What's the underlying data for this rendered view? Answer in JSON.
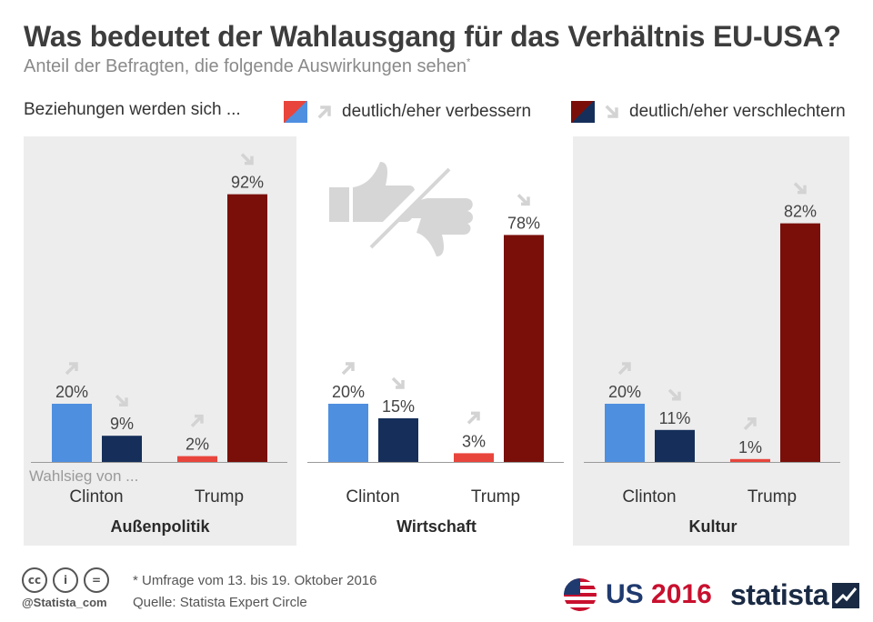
{
  "header": {
    "title": "Was bedeutet der Wahlausgang für das Verhältnis EU-USA?",
    "subtitle": "Anteil der Befragten, die folgende Auswirkungen sehen",
    "subtitle_mark": "*"
  },
  "legend": {
    "prefix": "Beziehungen werden sich ...",
    "items": [
      {
        "label": "deutlich/eher verbessern",
        "icon": "arrow-up-right-icon",
        "colors": [
          "#e8453c",
          "#4f8fe0"
        ]
      },
      {
        "label": "deutlich/eher verschlechtern",
        "icon": "arrow-down-right-icon",
        "colors": [
          "#7a0f0a",
          "#152f5a"
        ]
      }
    ]
  },
  "colors": {
    "clinton_better": "#4f8fe0",
    "clinton_worse": "#152f5a",
    "trump_better": "#e8453c",
    "trump_worse": "#7a0f0a",
    "panel_bg": "#ededed",
    "arrow": "#d3d3d3"
  },
  "chart_data": [
    {
      "type": "bar",
      "title": "Außenpolitik",
      "group_prefix": "Wahlsieg von ...",
      "categories": [
        "Clinton",
        "Trump"
      ],
      "series": [
        {
          "name": "deutlich/eher verbessern",
          "values": [
            20,
            2
          ]
        },
        {
          "name": "deutlich/eher verschlechtern",
          "values": [
            9,
            92
          ]
        }
      ],
      "labels": [
        [
          "20%",
          "9%"
        ],
        [
          "2%",
          "92%"
        ]
      ],
      "ylim": [
        0,
        100
      ]
    },
    {
      "type": "bar",
      "title": "Wirtschaft",
      "categories": [
        "Clinton",
        "Trump"
      ],
      "series": [
        {
          "name": "deutlich/eher verbessern",
          "values": [
            20,
            3
          ]
        },
        {
          "name": "deutlich/eher verschlechtern",
          "values": [
            15,
            78
          ]
        }
      ],
      "labels": [
        [
          "20%",
          "15%"
        ],
        [
          "3%",
          "78%"
        ]
      ],
      "ylim": [
        0,
        100
      ]
    },
    {
      "type": "bar",
      "title": "Kultur",
      "categories": [
        "Clinton",
        "Trump"
      ],
      "series": [
        {
          "name": "deutlich/eher verbessern",
          "values": [
            20,
            1
          ]
        },
        {
          "name": "deutlich/eher verschlechtern",
          "values": [
            11,
            82
          ]
        }
      ],
      "labels": [
        [
          "20%",
          "11%"
        ],
        [
          "1%",
          "82%"
        ]
      ],
      "ylim": [
        0,
        100
      ]
    }
  ],
  "footer": {
    "cc_icons": [
      "cc-icon",
      "by-icon",
      "nd-icon"
    ],
    "cc_labels": [
      "cc",
      "i",
      "="
    ],
    "handle": "@Statista_com",
    "footnote": "* Umfrage vom 13. bis 19. Oktober 2016",
    "source": "Quelle: Statista Expert Circle",
    "us_logo_prefix": "US",
    "us_logo_year": "2016",
    "brand": "statista"
  }
}
